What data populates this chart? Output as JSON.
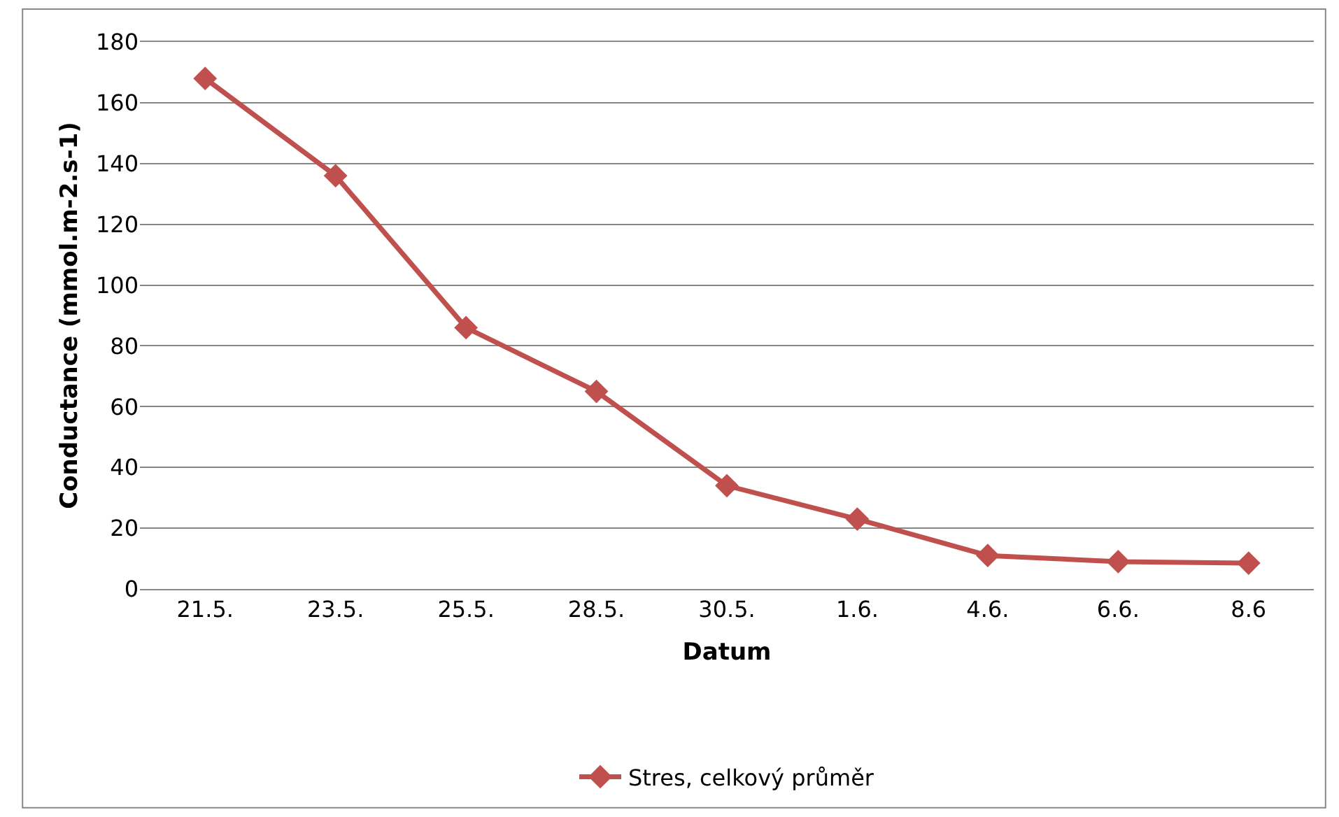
{
  "chart_data": {
    "type": "line",
    "xlabel": "Datum",
    "ylabel": "Conductance (mmol.m-2.s-1)",
    "categories": [
      "21.5.",
      "23.5.",
      "25.5.",
      "28.5.",
      "30.5.",
      "1.6.",
      "4.6.",
      "6.6.",
      "8.6"
    ],
    "series": [
      {
        "name": "Stres, celkový průměr",
        "color": "#c0504d",
        "values": [
          168,
          136,
          86,
          65,
          34,
          23,
          11,
          9,
          8.5
        ]
      }
    ],
    "ylim": [
      0,
      180
    ],
    "yticks": [
      0,
      20,
      40,
      60,
      80,
      100,
      120,
      140,
      160,
      180
    ],
    "grid": "y",
    "legend": "bottom",
    "marker": "diamond",
    "line_style": "solid"
  }
}
